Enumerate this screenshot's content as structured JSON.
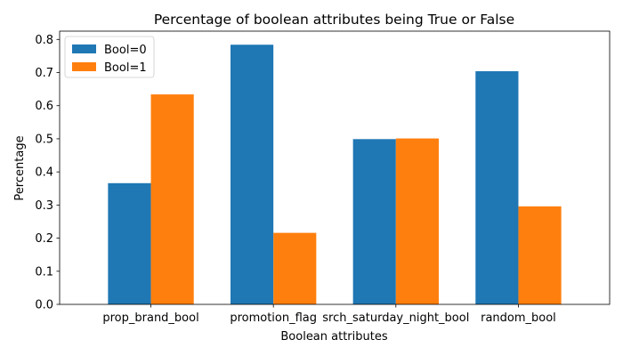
{
  "chart_data": {
    "type": "bar",
    "title": "Percentage of boolean attributes being True or False",
    "xlabel": "Boolean attributes",
    "ylabel": "Percentage",
    "categories": [
      "prop_brand_bool",
      "promotion_flag",
      "srch_saturday_night_bool",
      "random_bool"
    ],
    "series": [
      {
        "name": "Bool=0",
        "color": "#1f77b4",
        "values": [
          0.366,
          0.784,
          0.499,
          0.704
        ]
      },
      {
        "name": "Bool=1",
        "color": "#ff7f0e",
        "values": [
          0.634,
          0.216,
          0.501,
          0.296
        ]
      }
    ],
    "ylim": [
      0,
      0.825
    ],
    "yticks": [
      0.0,
      0.1,
      0.2,
      0.3,
      0.4,
      0.5,
      0.6,
      0.7,
      0.8
    ],
    "ytick_labels": [
      "0.0",
      "0.1",
      "0.2",
      "0.3",
      "0.4",
      "0.5",
      "0.6",
      "0.7",
      "0.8"
    ],
    "grid": false,
    "legend_position": "top-left"
  }
}
